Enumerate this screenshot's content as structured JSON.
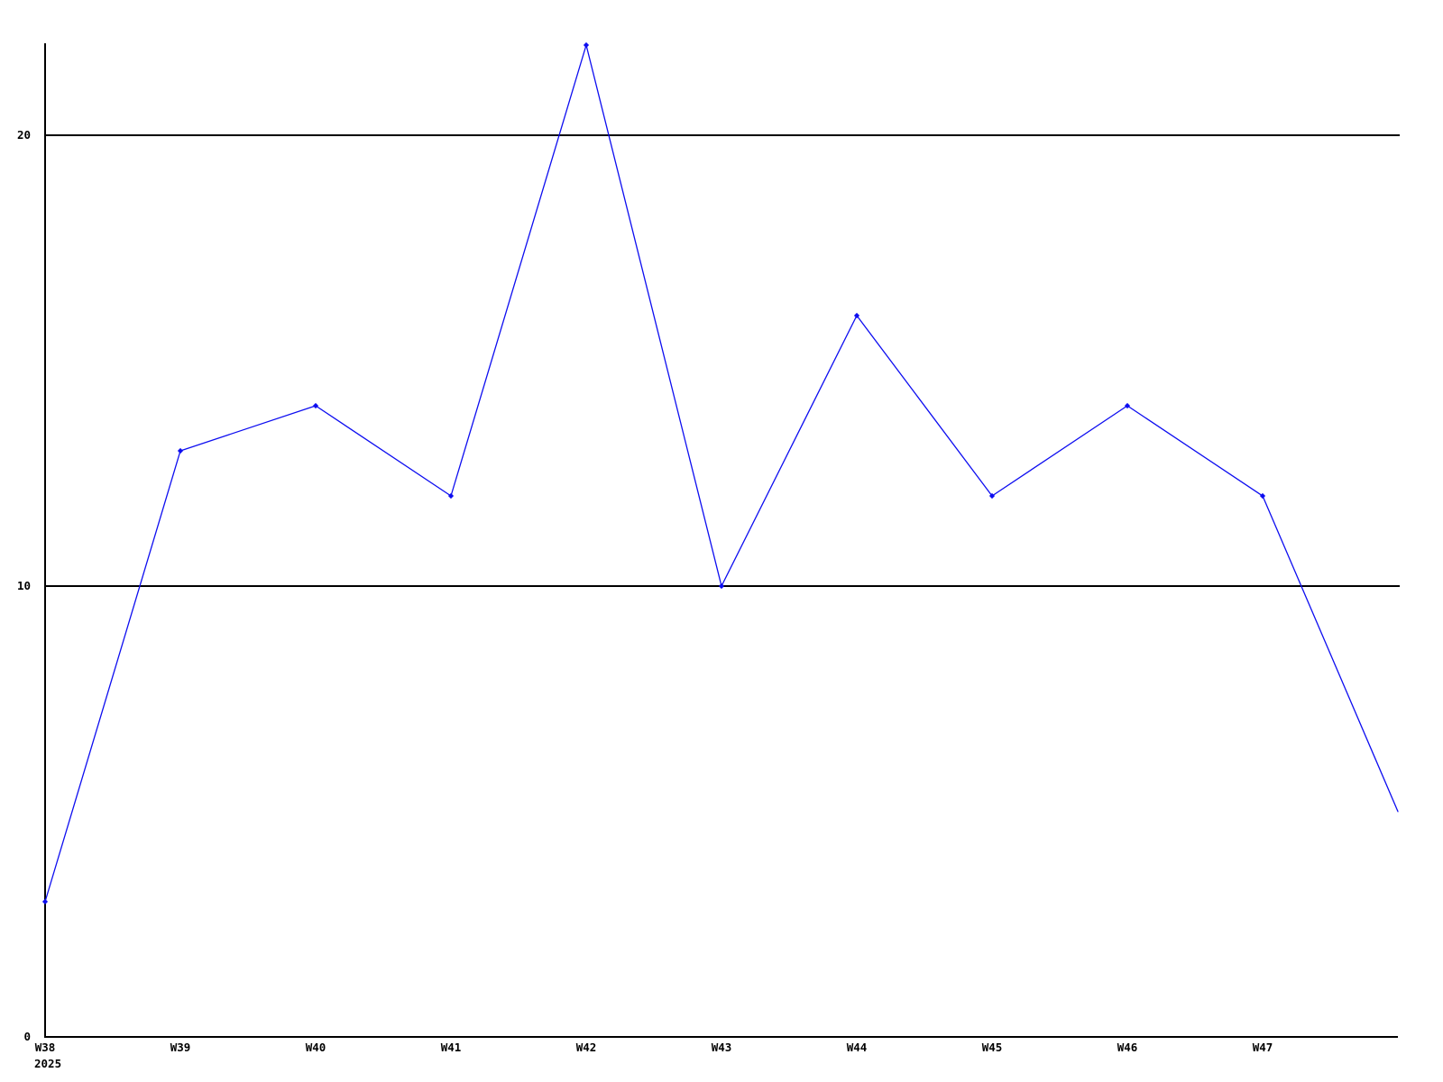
{
  "chart_data": {
    "type": "line",
    "title": "",
    "xlabel": "",
    "ylabel": "",
    "categories": [
      "W38",
      "W39",
      "W40",
      "W41",
      "W42",
      "W43",
      "W44",
      "W45",
      "W46",
      "W47",
      ""
    ],
    "values": [
      3,
      13,
      14,
      12,
      22,
      10,
      16,
      12,
      14,
      12,
      5
    ],
    "x_axis_year_label": "2025",
    "y_ticks": [
      0,
      10,
      20
    ],
    "ylim": [
      0,
      22
    ],
    "grid": "horizontal",
    "legend_position": "none",
    "last_point_has_marker": false,
    "colors": {
      "line": "#0d0df0",
      "marker": "#0d0df0",
      "axis": "#000000",
      "grid": "#000000",
      "background": "#ffffff",
      "text": "#000000"
    }
  }
}
